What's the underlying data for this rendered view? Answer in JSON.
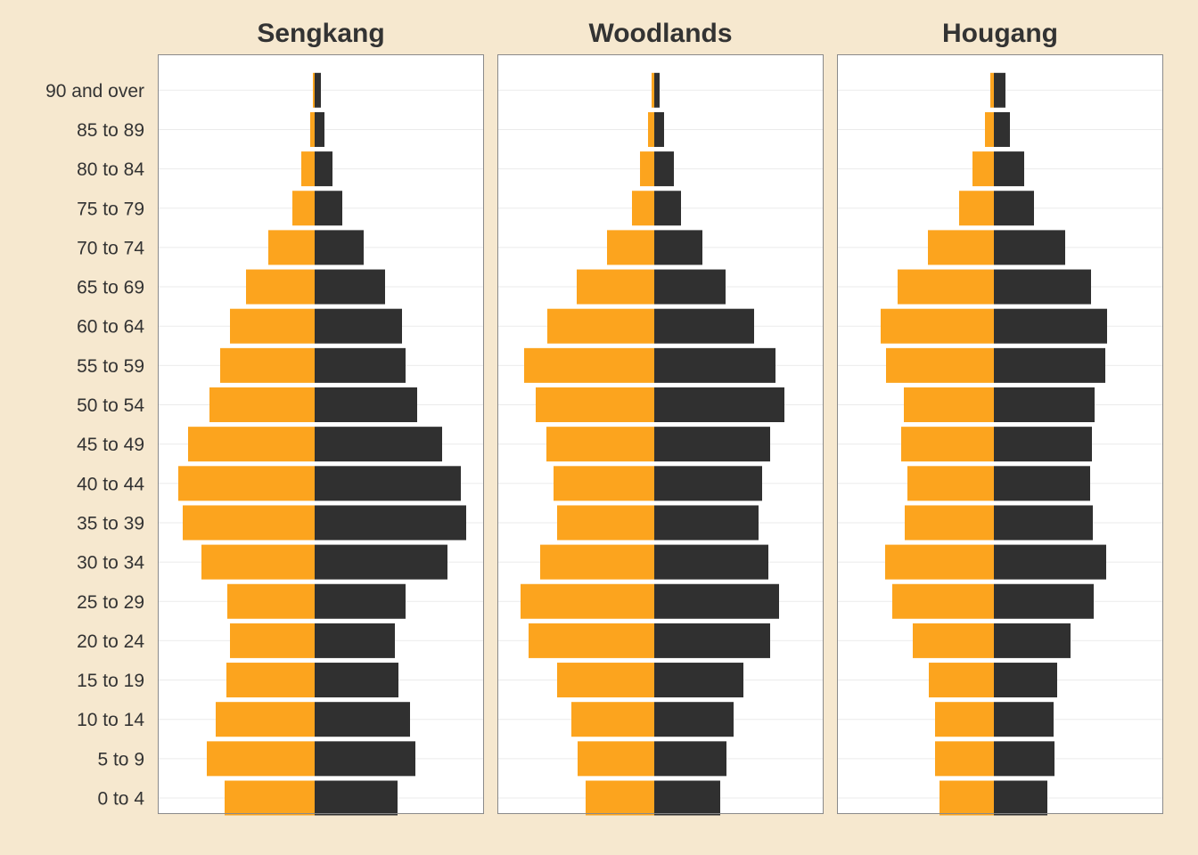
{
  "chart_data": {
    "type": "bar",
    "orientation": "horizontal-diverging",
    "categories": [
      "0 to 4",
      "5 to 9",
      "10 to 14",
      "15 to 19",
      "20 to 24",
      "25 to 29",
      "30 to 34",
      "35 to 39",
      "40 to 44",
      "45 to 49",
      "50 to 54",
      "55 to 59",
      "60 to 64",
      "65 to 69",
      "70 to 74",
      "75 to 79",
      "80 to 84",
      "85 to 89",
      "90 and over"
    ],
    "grid": true,
    "legend": "none",
    "colors": {
      "left": "#fca41e",
      "right": "#303030",
      "background": "#f6e8cf",
      "panel": "#ffffff",
      "grid": "#ebebeb",
      "panel_border": "#8a8a8a"
    },
    "panels": [
      {
        "title": "Sengkang",
        "left_values": [
          101,
          121,
          111,
          99,
          95,
          98,
          127,
          148,
          153,
          142,
          118,
          106,
          95,
          77,
          52,
          25,
          15,
          5,
          2
        ],
        "right_values": [
          93,
          113,
          107,
          94,
          90,
          102,
          149,
          170,
          164,
          143,
          115,
          102,
          98,
          79,
          55,
          31,
          20,
          11,
          7
        ]
      },
      {
        "title": "Woodlands",
        "left_values": [
          77,
          86,
          93,
          109,
          141,
          150,
          128,
          109,
          113,
          121,
          133,
          146,
          120,
          87,
          53,
          25,
          16,
          7,
          3
        ],
        "right_values": [
          74,
          81,
          89,
          100,
          130,
          140,
          128,
          117,
          121,
          130,
          146,
          136,
          112,
          80,
          54,
          30,
          22,
          11,
          6
        ]
      },
      {
        "title": "Hougang",
        "left_values": [
          61,
          66,
          66,
          73,
          91,
          114,
          122,
          100,
          97,
          104,
          101,
          121,
          127,
          108,
          74,
          39,
          24,
          10,
          4
        ],
        "right_values": [
          60,
          68,
          67,
          71,
          86,
          112,
          126,
          111,
          108,
          110,
          113,
          125,
          127,
          109,
          80,
          45,
          34,
          18,
          13
        ]
      }
    ]
  }
}
